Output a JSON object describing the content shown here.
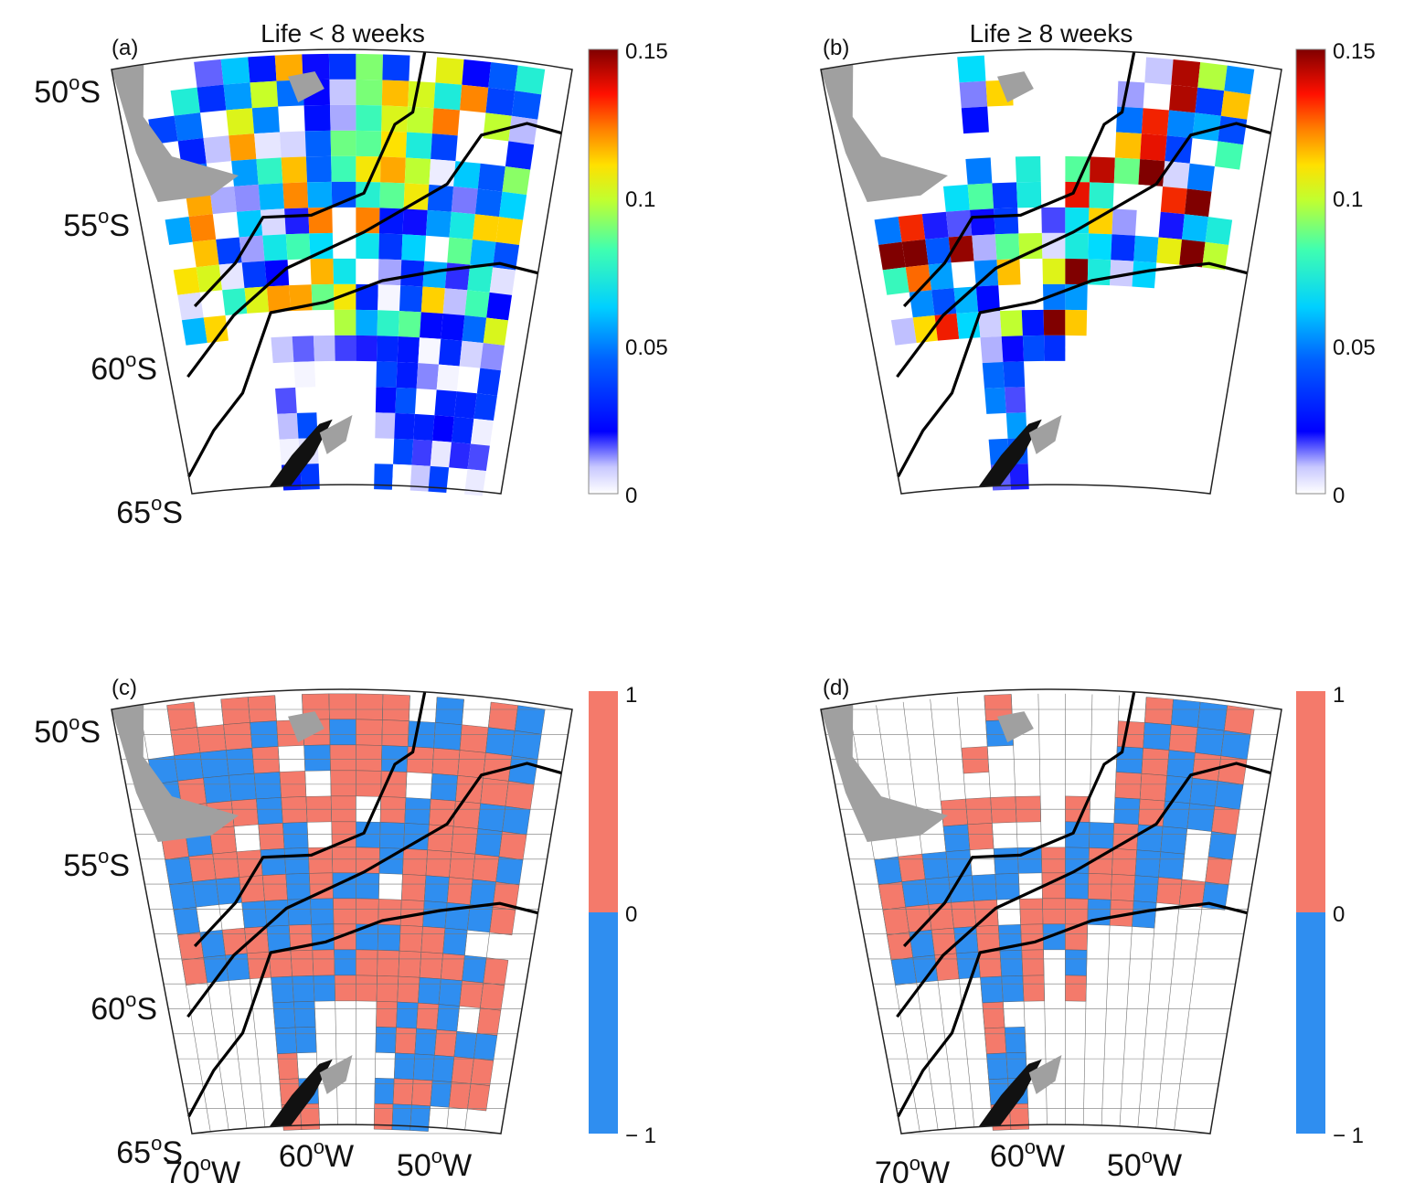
{
  "figure": {
    "panels": [
      {
        "id": "a",
        "letter": "(a)",
        "title": "Life < 8 weeks",
        "type": "continuous",
        "colorbar": {
          "ticks": [
            "0.15",
            "0.1",
            "0.05",
            "0"
          ]
        },
        "lat_labels": [
          "50oS",
          "55oS",
          "60oS",
          "65oS"
        ],
        "lon_labels": []
      },
      {
        "id": "b",
        "letter": "(b)",
        "title": "Life ≥ 8 weeks",
        "type": "continuous",
        "colorbar": {
          "ticks": [
            "0.15",
            "0.1",
            "0.05",
            "0"
          ]
        },
        "lat_labels": [],
        "lon_labels": []
      },
      {
        "id": "c",
        "letter": "(c)",
        "title": "",
        "type": "sign",
        "colorbar": {
          "ticks": [
            "1",
            "0",
            "− 1"
          ]
        },
        "lat_labels": [
          "50oS",
          "55oS",
          "60oS",
          "65oS"
        ],
        "lon_labels": [
          "70oW",
          "60oW",
          "50oW"
        ]
      },
      {
        "id": "d",
        "letter": "(d)",
        "title": "",
        "type": "sign",
        "colorbar": {
          "ticks": [
            "1",
            "0",
            "− 1"
          ]
        },
        "lat_labels": [],
        "lon_labels": [
          "70oW",
          "60oW",
          "50oW"
        ]
      }
    ],
    "colors": {
      "positive": "#f47a6b",
      "negative": "#2f8ef0",
      "land": "#a0a0a0",
      "antarctic": "#111111",
      "front": "#000000"
    },
    "colormap": "jet (white at 0)"
  },
  "chart_data": [
    {
      "panel": "a",
      "type": "heatmap",
      "title": "Life < 8 weeks",
      "colorbar_range": [
        0,
        0.15
      ],
      "lat_range_S": [
        50,
        65
      ],
      "lon_range_W": [
        45,
        70
      ]
    },
    {
      "panel": "b",
      "type": "heatmap",
      "title": "Life ≥ 8 weeks",
      "colorbar_range": [
        0,
        0.15
      ],
      "lat_range_S": [
        50,
        65
      ],
      "lon_range_W": [
        45,
        70
      ]
    },
    {
      "panel": "c",
      "type": "heatmap",
      "colorbar_range": [
        -1,
        1
      ],
      "categories": [
        -1,
        1
      ]
    },
    {
      "panel": "d",
      "type": "heatmap",
      "colorbar_range": [
        -1,
        1
      ],
      "categories": [
        -1,
        1
      ]
    }
  ]
}
